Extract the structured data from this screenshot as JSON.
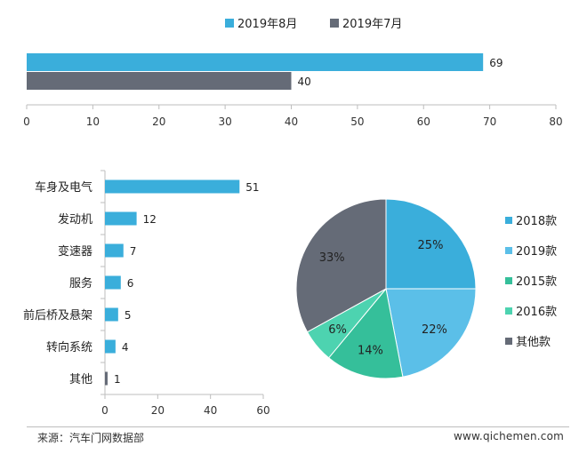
{
  "colors": {
    "blue": "#3AAEDB",
    "gray": "#656B77",
    "light_blue": "#5BBFE8",
    "green": "#35BF9A",
    "mint": "#4DD3B0"
  },
  "chart_data": [
    {
      "type": "bar",
      "orientation": "horizontal",
      "series": [
        {
          "name": "2019年8月",
          "values": [
            69
          ],
          "color": "#3AAEDB"
        },
        {
          "name": "2019年7月",
          "values": [
            40
          ],
          "color": "#656B77"
        }
      ],
      "xlim": [
        0,
        80
      ],
      "xticks": [
        "0",
        "10",
        "20",
        "30",
        "40",
        "50",
        "60",
        "70",
        "80"
      ],
      "legend_position": "top-center",
      "grid": false
    },
    {
      "type": "bar",
      "orientation": "horizontal",
      "categories": [
        "车身及电气",
        "发动机",
        "变速器",
        "服务",
        "前后桥及悬架",
        "转向系统",
        "其他"
      ],
      "values": [
        51,
        12,
        7,
        6,
        5,
        4,
        1
      ],
      "colors": [
        "#3AAEDB",
        "#3AAEDB",
        "#3AAEDB",
        "#3AAEDB",
        "#3AAEDB",
        "#3AAEDB",
        "#656B77"
      ],
      "xlim": [
        0,
        60
      ],
      "xticks": [
        "0",
        "20",
        "40",
        "60"
      ],
      "grid": false
    },
    {
      "type": "pie",
      "labels": [
        "2018款",
        "2019款",
        "2015款",
        "2016款",
        "其他款"
      ],
      "values": [
        25,
        22,
        14,
        6,
        33
      ],
      "value_labels": [
        "25%",
        "22%",
        "14%",
        "6%",
        "33%"
      ],
      "colors": [
        "#3AAEDB",
        "#5BBFE8",
        "#35BF9A",
        "#4DD3B0",
        "#656B77"
      ],
      "legend_position": "right"
    }
  ],
  "footer": {
    "source": "来源：汽车门网数据部",
    "website": "www.qichemen.com"
  }
}
